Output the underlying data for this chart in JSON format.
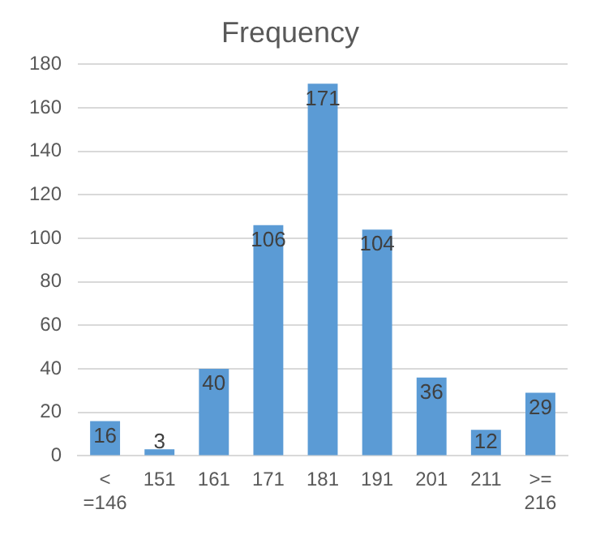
{
  "chart_data": {
    "type": "bar",
    "title": "Frequency",
    "categories": [
      "< =146",
      "151",
      "161",
      "171",
      "181",
      "191",
      "201",
      "211",
      ">= 216"
    ],
    "values": [
      16,
      3,
      40,
      106,
      171,
      104,
      36,
      12,
      29
    ],
    "color": "#5b9bd5",
    "ylim": [
      0,
      180
    ],
    "yticks": [
      0,
      20,
      40,
      60,
      80,
      100,
      120,
      140,
      160,
      180
    ],
    "grid": "y",
    "data_labels": true,
    "legend": false
  }
}
